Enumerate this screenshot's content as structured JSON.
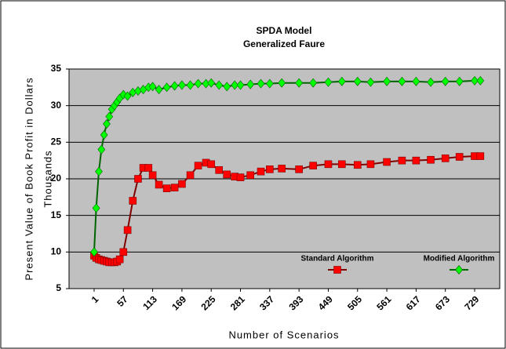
{
  "chart_data": {
    "type": "line",
    "title": "SPDA Model",
    "subtitle": "Generalized Faure",
    "ylabel": "Present Value of Book Profit in Dollars",
    "ylabel2": "Thousands",
    "xlabel": "Number of Scenarios",
    "x": [
      1,
      5,
      10,
      15,
      20,
      25,
      30,
      35,
      40,
      45,
      50,
      57,
      65,
      75,
      85,
      95,
      105,
      113,
      125,
      140,
      155,
      169,
      185,
      200,
      215,
      225,
      240,
      255,
      270,
      281,
      300,
      320,
      337,
      360,
      393,
      420,
      449,
      475,
      505,
      530,
      561,
      590,
      617,
      645,
      673,
      700,
      729,
      740
    ],
    "series": [
      {
        "name": "Standard Algorithm",
        "color": "#ff0000",
        "edge": "#800000",
        "marker": "square",
        "values": [
          9.5,
          9.2,
          9.0,
          8.9,
          8.8,
          8.7,
          8.6,
          8.6,
          8.6,
          8.7,
          9.0,
          10,
          13,
          17,
          20,
          21.5,
          21.5,
          20.5,
          19.2,
          18.7,
          18.8,
          19.3,
          20.5,
          21.8,
          22.2,
          22,
          21.2,
          20.6,
          20.3,
          20.2,
          20.5,
          21,
          21.3,
          21.4,
          21.3,
          21.8,
          22,
          22,
          21.9,
          22,
          22.3,
          22.5,
          22.5,
          22.6,
          22.8,
          23,
          23.1,
          23.1
        ]
      },
      {
        "name": "Modified Algorithm",
        "color": "#00ff00",
        "edge": "#006400",
        "marker": "diamond",
        "values": [
          10,
          16,
          21,
          24,
          26,
          27.5,
          28.5,
          29.5,
          30,
          30.5,
          31,
          31.5,
          31.3,
          31.8,
          32,
          32.2,
          32.5,
          32.6,
          32.2,
          32.5,
          32.7,
          32.8,
          32.8,
          33,
          33,
          33.1,
          32.8,
          32.6,
          32.8,
          32.8,
          32.9,
          33,
          33,
          33.1,
          33.1,
          33.1,
          33.2,
          33.3,
          33.3,
          33.2,
          33.3,
          33.3,
          33.3,
          33.2,
          33.3,
          33.3,
          33.4,
          33.4
        ]
      }
    ],
    "xlim": [
      -47,
      777
    ],
    "xticks": [
      1,
      57,
      113,
      169,
      225,
      281,
      337,
      393,
      449,
      505,
      561,
      617,
      673,
      729
    ],
    "ylim": [
      5,
      35
    ],
    "yticks": [
      5,
      10,
      15,
      20,
      25,
      30,
      35
    ],
    "grid": true,
    "legend": "lower right",
    "plot_background": "#c0c0c0"
  }
}
